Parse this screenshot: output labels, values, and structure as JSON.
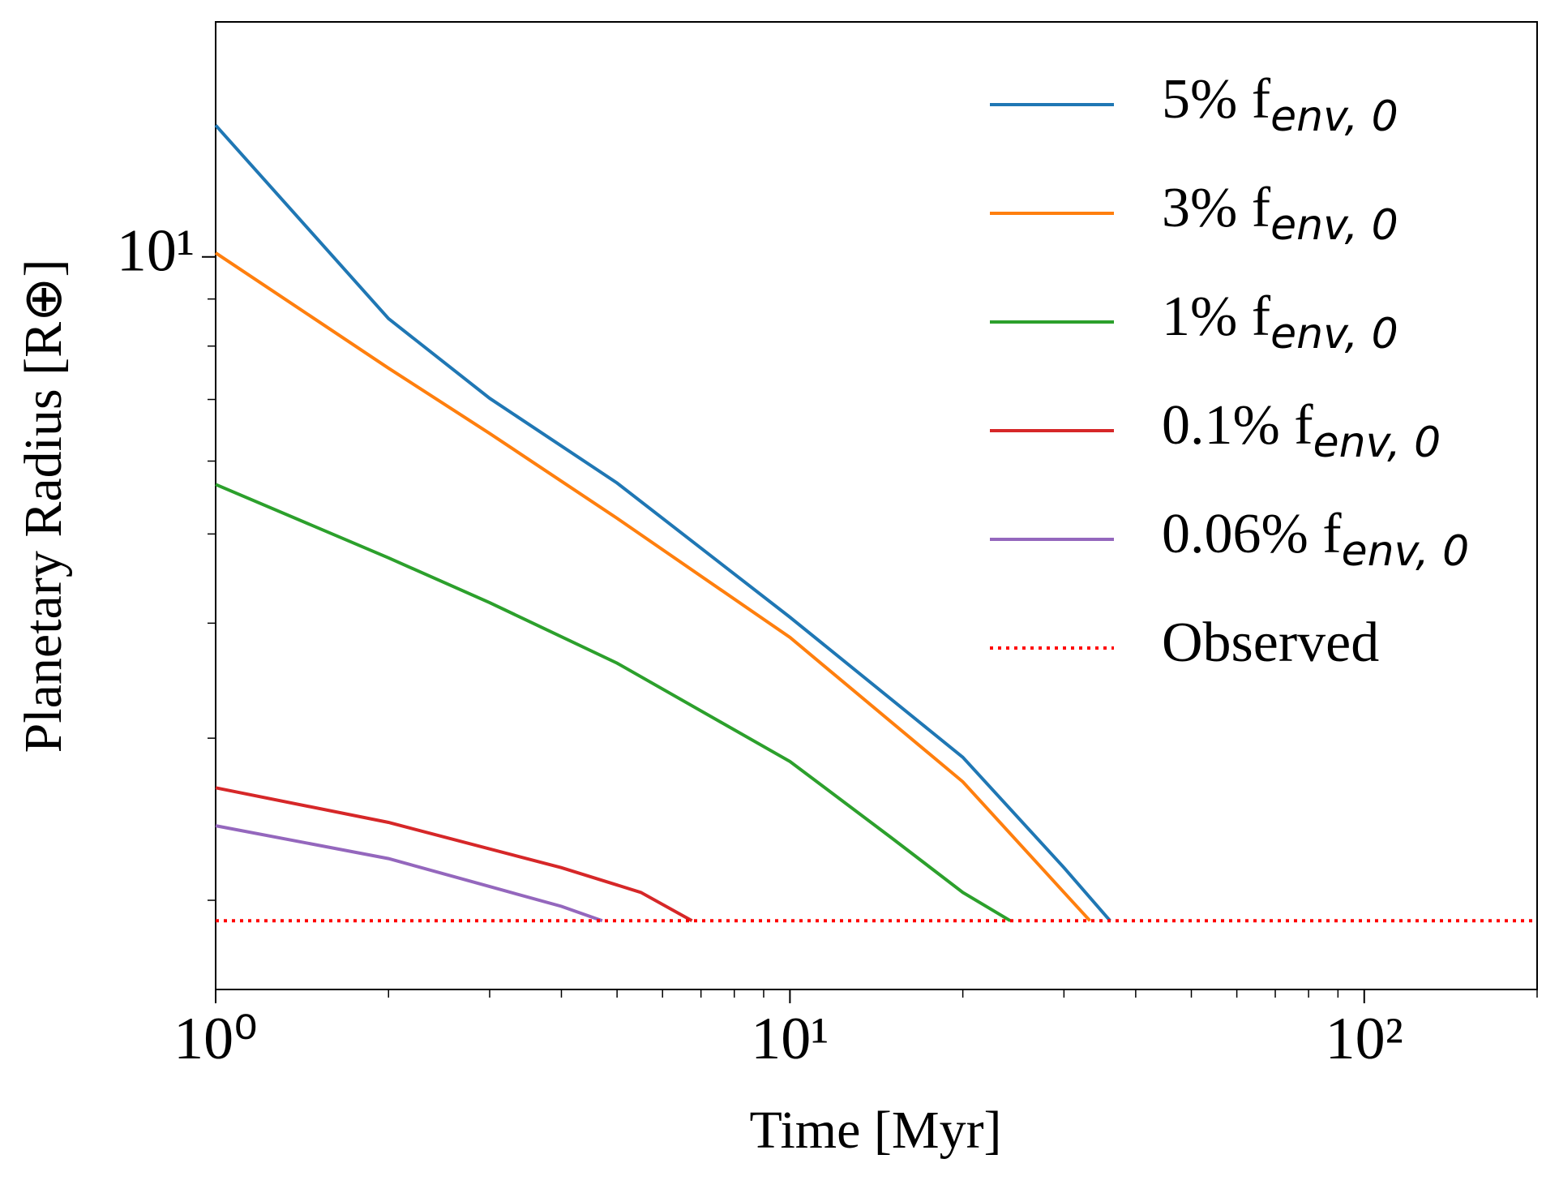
{
  "chart_data": {
    "type": "line",
    "xlabel": "Time [Myr]",
    "ylabel": "Planetary Radius [R⊕]",
    "xscale": "log",
    "yscale": "log",
    "xlim": [
      1,
      200
    ],
    "ylim": [
      1.6,
      18
    ],
    "xticks": [
      {
        "value": 1,
        "label": "10⁰"
      },
      {
        "value": 10,
        "label": "10¹"
      },
      {
        "value": 100,
        "label": "10²"
      }
    ],
    "xminor_ticks": [
      2,
      3,
      4,
      5,
      6,
      7,
      8,
      9,
      20,
      30,
      40,
      50,
      60,
      70,
      80,
      90,
      200
    ],
    "yticks": [
      {
        "value": 10,
        "label": "10¹"
      }
    ],
    "yminor_ticks": [
      2,
      3,
      4,
      5,
      6,
      7,
      8,
      9
    ],
    "legend": "upper right",
    "series": [
      {
        "name": "5% f",
        "name_sub": "env, 0",
        "color": "#1f77b4",
        "style": "solid",
        "x": [
          1,
          2,
          3,
          5,
          10,
          20,
          30,
          36.1
        ],
        "values": [
          13.9,
          8.57,
          7.02,
          5.68,
          4.06,
          2.86,
          2.17,
          1.9
        ]
      },
      {
        "name": "3% f",
        "name_sub": "env, 0",
        "color": "#ff7f0e",
        "style": "solid",
        "x": [
          1,
          2,
          3,
          5,
          10,
          20,
          30,
          33.3
        ],
        "values": [
          10.1,
          7.57,
          6.43,
          5.2,
          3.86,
          2.69,
          2.04,
          1.9
        ]
      },
      {
        "name": "1% f",
        "name_sub": "env, 0",
        "color": "#2ca02c",
        "style": "solid",
        "x": [
          1,
          2,
          3,
          5,
          10,
          15,
          20,
          24.2
        ],
        "values": [
          5.66,
          4.71,
          4.21,
          3.62,
          2.83,
          2.34,
          2.04,
          1.9
        ]
      },
      {
        "name": "0.1% f",
        "name_sub": "env, 0",
        "color": "#d62728",
        "style": "solid",
        "x": [
          1,
          2,
          4,
          5.5,
          6.75
        ],
        "values": [
          2.65,
          2.43,
          2.17,
          2.04,
          1.9
        ]
      },
      {
        "name": "0.06% f",
        "name_sub": "env, 0",
        "color": "#9467bd",
        "style": "solid",
        "x": [
          1,
          2,
          3,
          4,
          4.71
        ],
        "values": [
          2.41,
          2.22,
          2.07,
          1.97,
          1.9
        ]
      },
      {
        "name": "Observed",
        "color": "#ff0000",
        "style": "dotted",
        "x": [
          1,
          200
        ],
        "values": [
          1.9,
          1.9
        ]
      }
    ]
  }
}
